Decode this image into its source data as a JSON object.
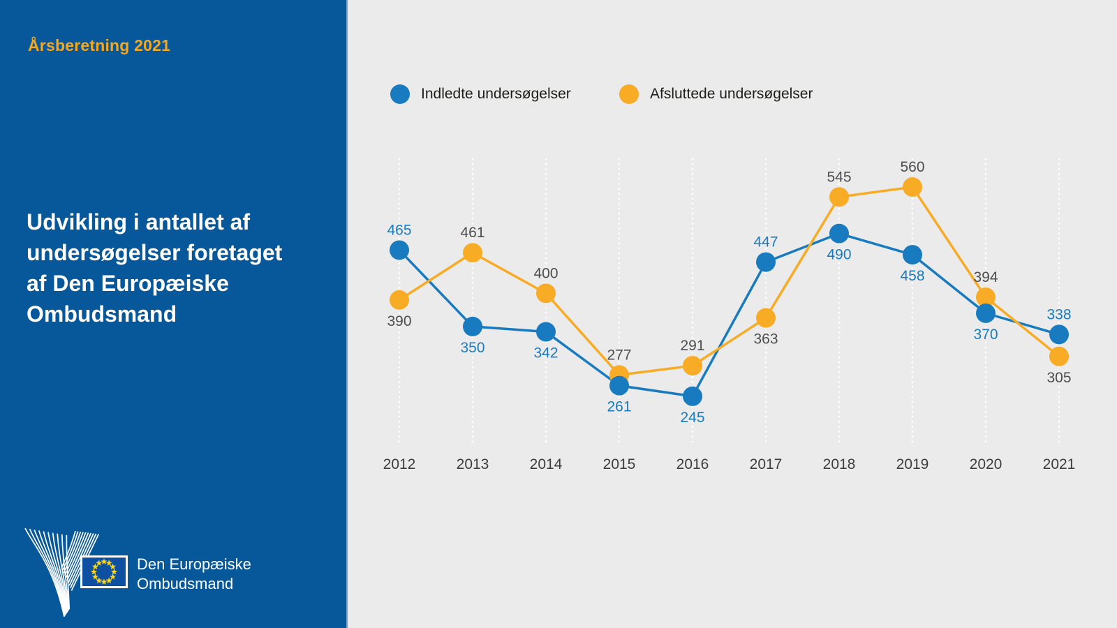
{
  "sidebar": {
    "report_label": "Årsberetning 2021",
    "title": "Udvikling i antallet af\nundersøgelser foretaget\naf Den Europæiske\nOmbudsmand",
    "logo_text": "Den Europæiske\nOmbudsmand"
  },
  "legend": {
    "items": [
      "Indledte undersøgelser",
      "Afsluttede undersøgelser"
    ]
  },
  "chart_data": {
    "type": "line",
    "title": "Udvikling i antallet af undersøgelser foretaget af Den Europæiske Ombudsmand",
    "categories": [
      "2012",
      "2013",
      "2014",
      "2015",
      "2016",
      "2017",
      "2018",
      "2019",
      "2020",
      "2021"
    ],
    "series": [
      {
        "name": "Indledte undersøgelser",
        "color": "#187abf",
        "label_color": "#187abf",
        "values": [
          465,
          350,
          342,
          261,
          245,
          447,
          490,
          458,
          370,
          338
        ]
      },
      {
        "name": "Afsluttede undersøgelser",
        "color": "#f8ab25",
        "label_color": "#4d4d4d",
        "values": [
          390,
          461,
          400,
          277,
          291,
          363,
          545,
          560,
          394,
          305
        ]
      }
    ],
    "xlabel": "",
    "ylabel": "",
    "ylim": [
      200,
      620
    ],
    "grid": "vertical-dotted-white",
    "legend_position": "top",
    "data_labels": true
  },
  "colors": {
    "sidebar_blue": "#07589a",
    "panel_gray": "#ebebeb",
    "gold_accent": "#f5a71e",
    "year_label_gray": "#3d3d3d",
    "flag_blue": "#0d4fa0",
    "flag_star_yellow": "#ffd617",
    "gridline_white": "#ffffff"
  }
}
